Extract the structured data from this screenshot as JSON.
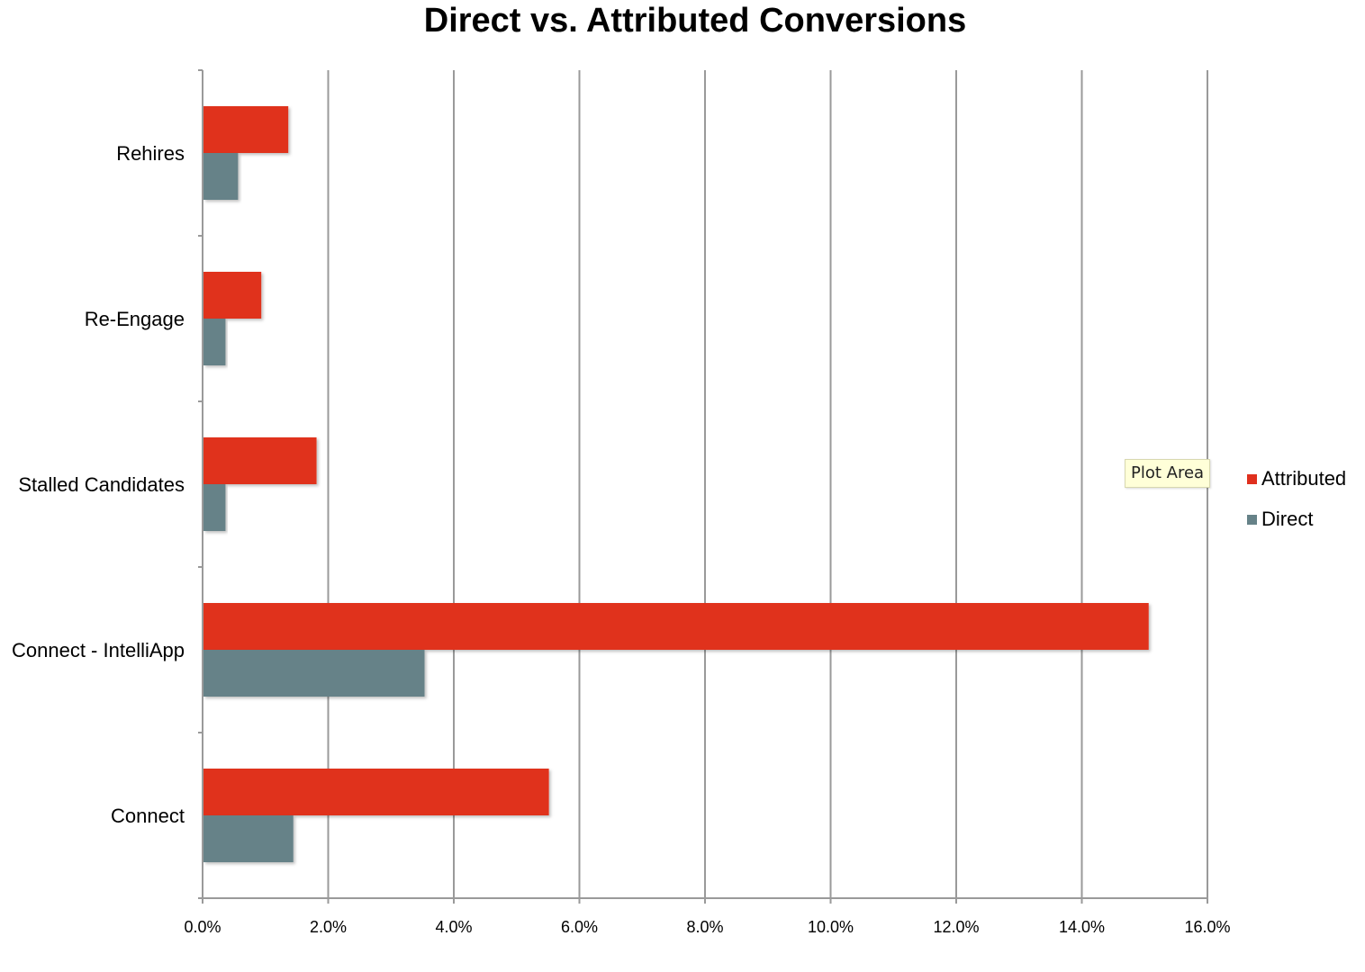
{
  "chart_data": {
    "type": "bar",
    "orientation": "horizontal",
    "title": "Direct vs. Attributed Conversions",
    "xlabel": "",
    "ylabel": "",
    "categories": [
      "Rehires",
      "Re-Engage",
      "Stalled Candidates",
      "Connect - IntelliApp",
      "Connect"
    ],
    "series": [
      {
        "name": "Attributed",
        "color": "#e0301e",
        "values": [
          1.35,
          0.92,
          1.8,
          15.05,
          5.5
        ]
      },
      {
        "name": "Direct",
        "color": "#668288",
        "values": [
          0.55,
          0.35,
          0.35,
          3.52,
          1.43
        ]
      }
    ],
    "xlim": [
      0,
      16
    ],
    "xticks": [
      "0.0%",
      "2.0%",
      "4.0%",
      "6.0%",
      "8.0%",
      "10.0%",
      "12.0%",
      "14.0%",
      "16.0%"
    ],
    "grid": "vertical",
    "legend": "right"
  },
  "tooltip": {
    "text": "Plot Area"
  }
}
